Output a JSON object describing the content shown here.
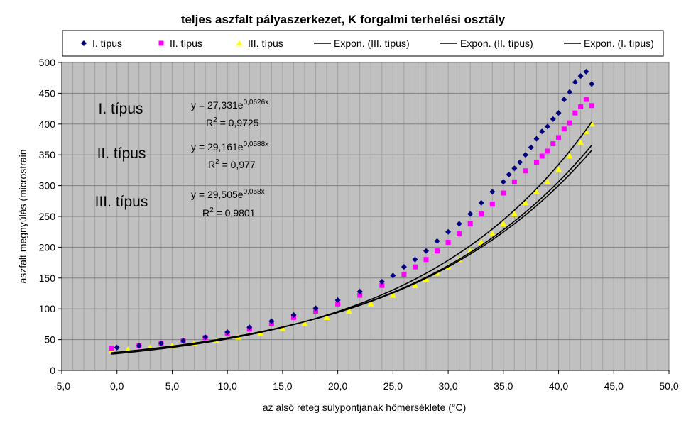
{
  "chart_data": {
    "type": "scatter",
    "title": "teljes aszfalt pályaszerkezet, K forgalmi terhelési osztály",
    "xlabel": "az alsó réteg súlypontjának hőmérséklete (°C)",
    "ylabel": "aszfalt megnyúlás (microstrain",
    "xlim": [
      -5,
      50
    ],
    "ylim": [
      0,
      500
    ],
    "xticks": [
      -5,
      0,
      5,
      10,
      15,
      20,
      25,
      30,
      35,
      40,
      45,
      50
    ],
    "yticks": [
      0,
      50,
      100,
      150,
      200,
      250,
      300,
      350,
      400,
      450,
      500
    ],
    "xtick_labels": [
      "-5,0",
      "0,0",
      "5,0",
      "10,0",
      "15,0",
      "20,0",
      "25,0",
      "30,0",
      "35,0",
      "40,0",
      "45,0",
      "50,0"
    ],
    "ytick_labels": [
      "0",
      "50",
      "100",
      "150",
      "200",
      "250",
      "300",
      "350",
      "400",
      "450",
      "500"
    ],
    "grid": true,
    "plot_background": "#c0c0c0",
    "legend_position": "top",
    "series": [
      {
        "name": "I. típus",
        "marker": "diamond",
        "color": "#000080",
        "x": [
          0.0,
          2.0,
          4.0,
          6.0,
          8.0,
          10.0,
          12.0,
          14.0,
          16.0,
          18.0,
          20.0,
          22.0,
          24.0,
          25.0,
          26.0,
          27.0,
          28.0,
          29.0,
          30.0,
          31.0,
          32.0,
          33.0,
          34.0,
          35.0,
          35.5,
          36.0,
          36.5,
          37.0,
          37.5,
          38.0,
          38.5,
          39.0,
          39.5,
          40.0,
          40.5,
          41.0,
          41.5,
          42.0,
          42.5,
          43.0
        ],
        "y": [
          37,
          40,
          44,
          48,
          54,
          62,
          70,
          80,
          90,
          101,
          114,
          128,
          144,
          154,
          168,
          180,
          194,
          210,
          225,
          238,
          254,
          272,
          290,
          306,
          318,
          328,
          338,
          350,
          362,
          376,
          388,
          396,
          408,
          418,
          440,
          452,
          468,
          478,
          485,
          465
        ]
      },
      {
        "name": "II. típus",
        "marker": "square",
        "color": "#ff00ff",
        "x": [
          -0.5,
          2.0,
          4.0,
          6.0,
          8.0,
          10.0,
          12.0,
          14.0,
          16.0,
          18.0,
          20.0,
          22.0,
          24.0,
          26.0,
          27.0,
          28.0,
          29.0,
          30.0,
          31.0,
          32.0,
          33.0,
          34.0,
          35.0,
          36.0,
          37.0,
          38.0,
          38.5,
          39.0,
          39.5,
          40.0,
          40.5,
          41.0,
          41.5,
          42.0,
          42.5,
          43.0
        ],
        "y": [
          36,
          40,
          44,
          48,
          53,
          60,
          67,
          76,
          86,
          96,
          108,
          122,
          138,
          156,
          168,
          180,
          194,
          208,
          222,
          238,
          254,
          270,
          288,
          306,
          324,
          338,
          348,
          356,
          368,
          378,
          392,
          402,
          418,
          428,
          440,
          430
        ]
      },
      {
        "name": "III. típus",
        "marker": "triangle",
        "color": "#ffff00",
        "x": [
          -0.5,
          1.0,
          3.0,
          5.0,
          7.0,
          9.0,
          11.0,
          13.0,
          15.0,
          17.0,
          19.0,
          21.0,
          23.0,
          25.0,
          27.0,
          28.0,
          29.0,
          30.0,
          31.0,
          32.0,
          33.0,
          34.0,
          35.0,
          36.0,
          37.0,
          38.0,
          39.0,
          40.0,
          41.0,
          42.0,
          42.5,
          43.0
        ],
        "y": [
          32,
          34,
          37,
          40,
          44,
          48,
          54,
          60,
          68,
          76,
          86,
          96,
          108,
          122,
          138,
          148,
          158,
          168,
          180,
          194,
          208,
          222,
          238,
          254,
          272,
          290,
          306,
          326,
          348,
          370,
          388,
          400
        ]
      }
    ],
    "trendlines": [
      {
        "name": "Expon. (III. típus)",
        "a": 29.505,
        "b": 0.058,
        "color": "#000000",
        "x_range": [
          -0.5,
          43
        ]
      },
      {
        "name": "Expon. (II. típus)",
        "a": 29.161,
        "b": 0.0588,
        "color": "#000000",
        "x_range": [
          -0.5,
          43
        ]
      },
      {
        "name": "Expon. (I. típus)",
        "a": 27.331,
        "b": 0.0626,
        "color": "#000000",
        "x_range": [
          -0.5,
          43
        ]
      }
    ],
    "annotations": [
      {
        "label": "I. típus",
        "eq_prefix": "y = 27,331e",
        "eq_exp": "0,0626x",
        "r2_value": " = 0,9725"
      },
      {
        "label": "II. típus",
        "eq_prefix": "y = 29,161e",
        "eq_exp": "0,0588x",
        "r2_value": " = 0,977"
      },
      {
        "label": "III. típus",
        "eq_prefix": "y = 29,505e",
        "eq_exp": "0,058x",
        "r2_value": " = 0,9801"
      }
    ]
  }
}
